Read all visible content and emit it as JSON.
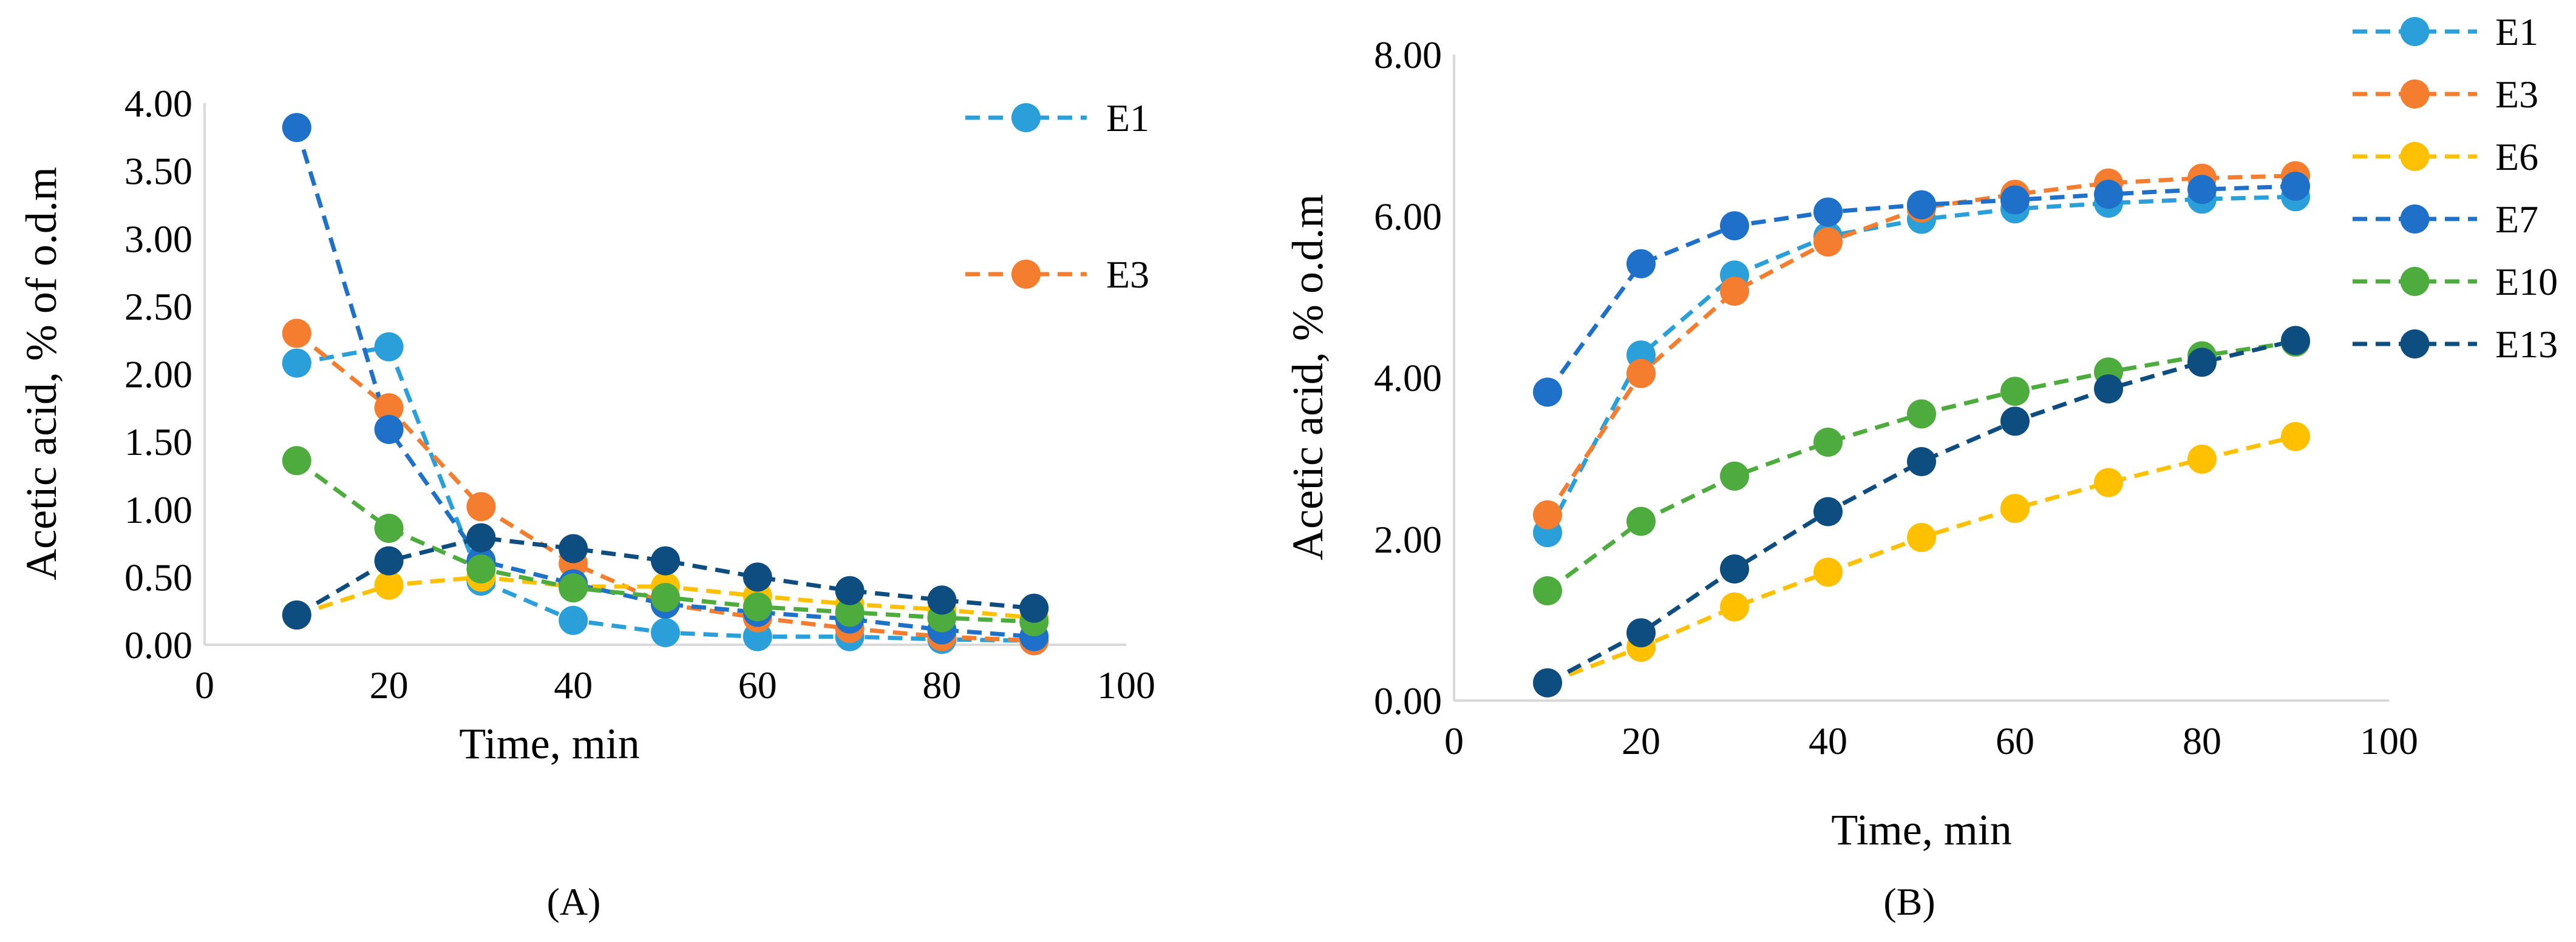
{
  "figure": {
    "panels": [
      "(A)",
      "(B)"
    ]
  },
  "chart_data": [
    {
      "panel_label": "(A)",
      "type": "line",
      "title": "",
      "xlabel": "Time, min",
      "ylabel": "Acetic acid, % of o.d.m",
      "xlim": [
        0,
        100
      ],
      "ylim": [
        0,
        4
      ],
      "xticks": [
        0,
        20,
        40,
        60,
        80,
        100
      ],
      "yticks": [
        0,
        0.5,
        1,
        1.5,
        2,
        2.5,
        3,
        3.5,
        4
      ],
      "ytick_decimals": 2,
      "grid": false,
      "legend_position": "top-right",
      "x": [
        10,
        20,
        30,
        40,
        50,
        60,
        70,
        80,
        90
      ],
      "series": [
        {
          "name": "E1",
          "color": "#2A9FDA",
          "values": [
            2.08,
            2.2,
            0.47,
            0.18,
            0.09,
            0.06,
            0.06,
            0.04,
            0.03
          ],
          "legend": true
        },
        {
          "name": "E3",
          "color": "#F47D2F",
          "values": [
            2.3,
            1.75,
            1.02,
            0.6,
            0.3,
            0.2,
            0.12,
            0.06,
            0.03
          ],
          "legend": true
        },
        {
          "name": "E6",
          "color": "#FFC000",
          "values": [
            0.22,
            0.44,
            0.5,
            0.43,
            0.43,
            0.36,
            0.3,
            0.26,
            0.2
          ],
          "legend": false
        },
        {
          "name": "E7",
          "color": "#1E70C8",
          "values": [
            3.82,
            1.59,
            0.62,
            0.45,
            0.3,
            0.24,
            0.19,
            0.11,
            0.06
          ],
          "legend": false
        },
        {
          "name": "E10",
          "color": "#4EAC3F",
          "values": [
            1.36,
            0.86,
            0.56,
            0.42,
            0.35,
            0.28,
            0.24,
            0.2,
            0.17
          ],
          "legend": false
        },
        {
          "name": "E13",
          "color": "#0E4D80",
          "values": [
            0.22,
            0.62,
            0.79,
            0.71,
            0.62,
            0.5,
            0.4,
            0.33,
            0.27
          ],
          "legend": false
        }
      ]
    },
    {
      "panel_label": "(B)",
      "type": "line",
      "title": "",
      "xlabel": "Time, min",
      "ylabel": "Acetic acid, % o.d.m",
      "xlim": [
        0,
        100
      ],
      "ylim": [
        0,
        8
      ],
      "xticks": [
        0,
        20,
        40,
        60,
        80,
        100
      ],
      "yticks": [
        0,
        2,
        4,
        6,
        8
      ],
      "ytick_decimals": 2,
      "grid": false,
      "legend_position": "right",
      "x": [
        10,
        20,
        30,
        40,
        50,
        60,
        70,
        80,
        90
      ],
      "series": [
        {
          "name": "E1",
          "color": "#2A9FDA",
          "values": [
            2.08,
            4.28,
            5.27,
            5.75,
            5.96,
            6.09,
            6.16,
            6.21,
            6.24
          ],
          "legend": true
        },
        {
          "name": "E3",
          "color": "#F47D2F",
          "values": [
            2.3,
            4.05,
            5.07,
            5.68,
            6.1,
            6.27,
            6.41,
            6.47,
            6.5
          ],
          "legend": true
        },
        {
          "name": "E6",
          "color": "#FFC000",
          "values": [
            0.22,
            0.66,
            1.16,
            1.59,
            2.02,
            2.38,
            2.7,
            2.99,
            3.27
          ],
          "legend": true
        },
        {
          "name": "E7",
          "color": "#1E70C8",
          "values": [
            3.82,
            5.41,
            5.88,
            6.05,
            6.14,
            6.2,
            6.27,
            6.33,
            6.37
          ],
          "legend": true
        },
        {
          "name": "E10",
          "color": "#4EAC3F",
          "values": [
            1.36,
            2.22,
            2.78,
            3.2,
            3.55,
            3.83,
            4.07,
            4.27,
            4.44
          ],
          "legend": true
        },
        {
          "name": "E13",
          "color": "#0E4D80",
          "values": [
            0.22,
            0.84,
            1.63,
            2.34,
            2.96,
            3.46,
            3.86,
            4.19,
            4.46
          ],
          "legend": true
        }
      ]
    }
  ]
}
